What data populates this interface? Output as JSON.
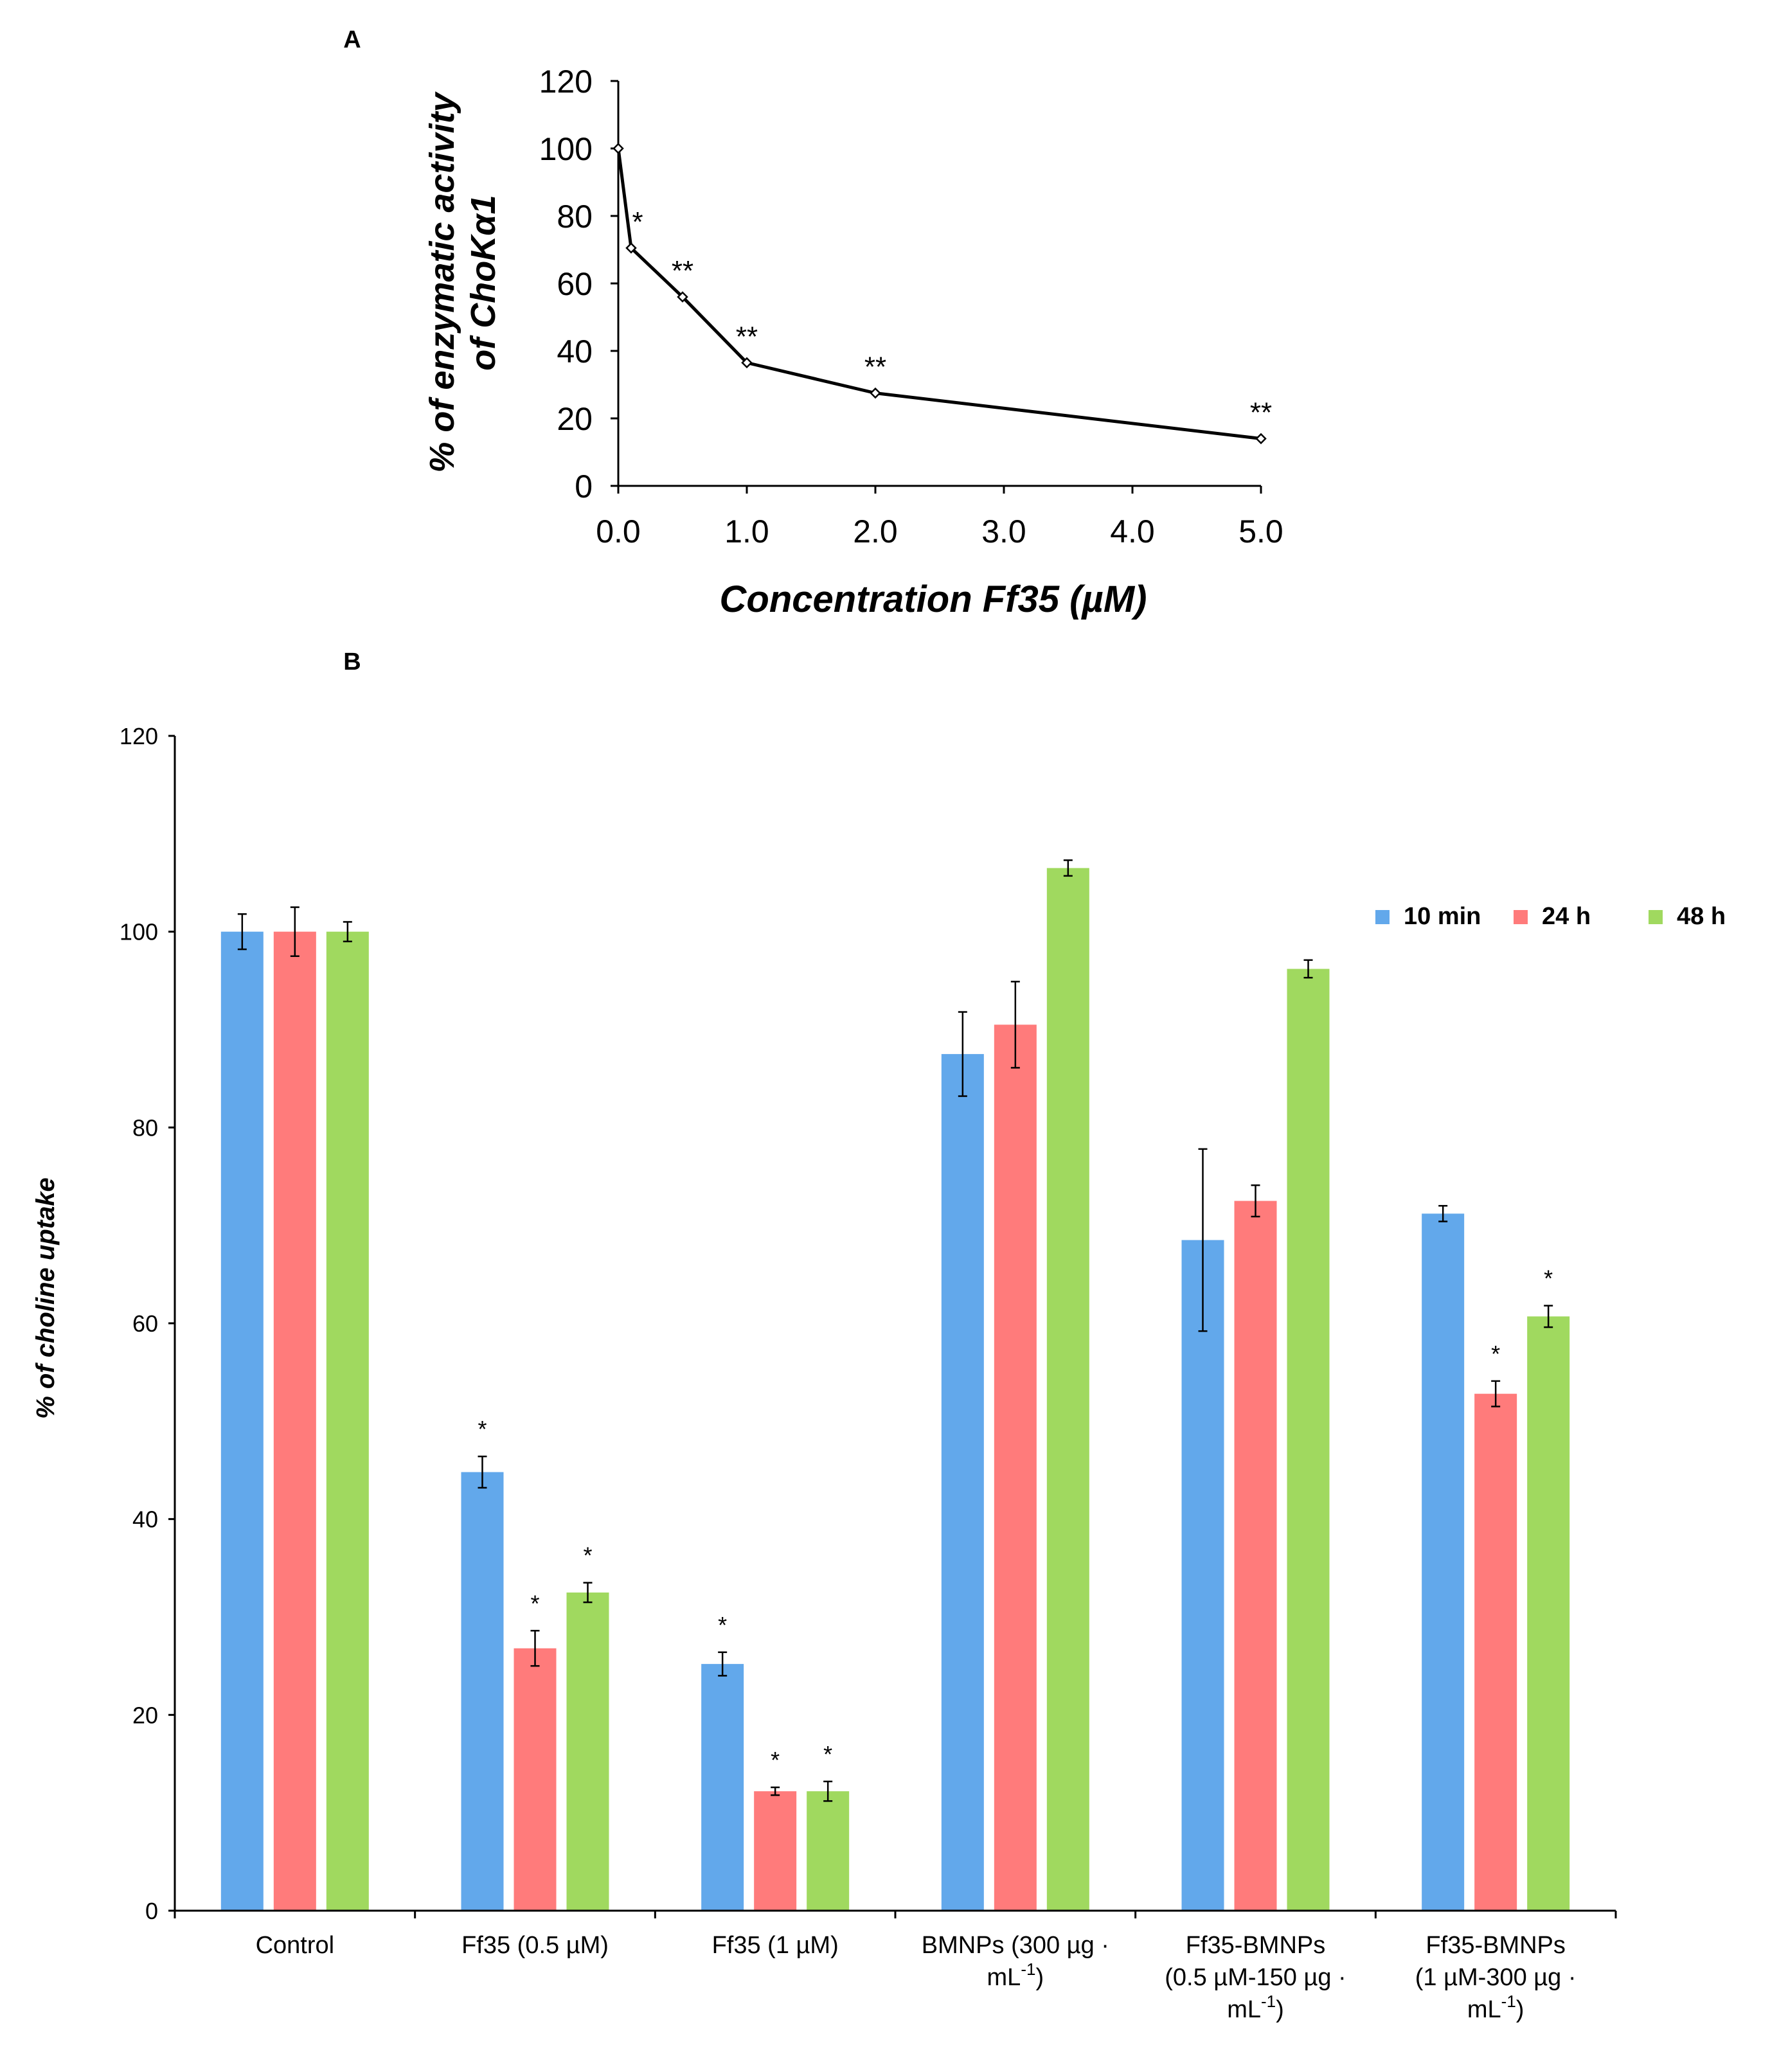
{
  "chart_data": [
    {
      "panel": "A",
      "type": "line",
      "xlabel": "Concentration Ff35 (µM)",
      "ylabel_line1": "% of enzymatic activity",
      "ylabel_line2": "of ChoKα1",
      "x": [
        0.0,
        0.1,
        0.5,
        1.0,
        2.0,
        5.0
      ],
      "y": [
        100,
        70.5,
        56,
        36.5,
        27.5,
        14
      ],
      "significance": [
        "",
        "*",
        "**",
        "**",
        "**",
        "**"
      ],
      "x_ticks": [
        0.0,
        1.0,
        2.0,
        3.0,
        4.0,
        5.0
      ],
      "x_tick_labels": [
        "0.0",
        "1.0",
        "2.0",
        "3.0",
        "4.0",
        "5.0"
      ],
      "ylim": [
        0,
        120
      ],
      "y_ticks": [
        0,
        20,
        40,
        60,
        80,
        100,
        120
      ],
      "line_color": "#000000"
    },
    {
      "panel": "B",
      "type": "bar",
      "ylabel": "% of choline uptake",
      "ylim": [
        0,
        120
      ],
      "y_ticks": [
        0,
        20,
        40,
        60,
        80,
        100,
        120
      ],
      "categories": [
        [
          "Control"
        ],
        [
          "Ff35 (0.5 µM)"
        ],
        [
          "Ff35 (1 µM)"
        ],
        [
          "BMNPs (300 µg ·",
          "mL",
          "-1",
          ")"
        ],
        [
          "Ff35-BMNPs",
          "(0.5 µM-150 µg ·",
          "mL",
          "-1",
          ")"
        ],
        [
          "Ff35-BMNPs",
          "(1 µM-300 µg ·",
          "mL",
          "-1",
          ")"
        ]
      ],
      "series": [
        {
          "name": "10 min",
          "color": "#62a8eb",
          "values": [
            100,
            44.8,
            25.2,
            87.5,
            68.5,
            71.2
          ],
          "errors": [
            1.8,
            1.6,
            1.2,
            4.3,
            9.3,
            0.8
          ],
          "significance": [
            "",
            "*",
            "*",
            "",
            "",
            ""
          ]
        },
        {
          "name": "24 h",
          "color": "#ff7b7b",
          "values": [
            100,
            26.8,
            12.2,
            90.5,
            72.5,
            52.8
          ],
          "errors": [
            2.5,
            1.8,
            0.4,
            4.4,
            1.6,
            1.3
          ],
          "significance": [
            "",
            "*",
            "*",
            "",
            "",
            "*"
          ]
        },
        {
          "name": "48 h",
          "color": "#a0d95f",
          "values": [
            100,
            32.5,
            12.2,
            106.5,
            96.2,
            60.7
          ],
          "errors": [
            1.0,
            1.0,
            1.0,
            0.8,
            0.9,
            1.1
          ],
          "significance": [
            "",
            "*",
            "*",
            "",
            "",
            "*"
          ]
        }
      ],
      "legend": "top-right"
    }
  ]
}
